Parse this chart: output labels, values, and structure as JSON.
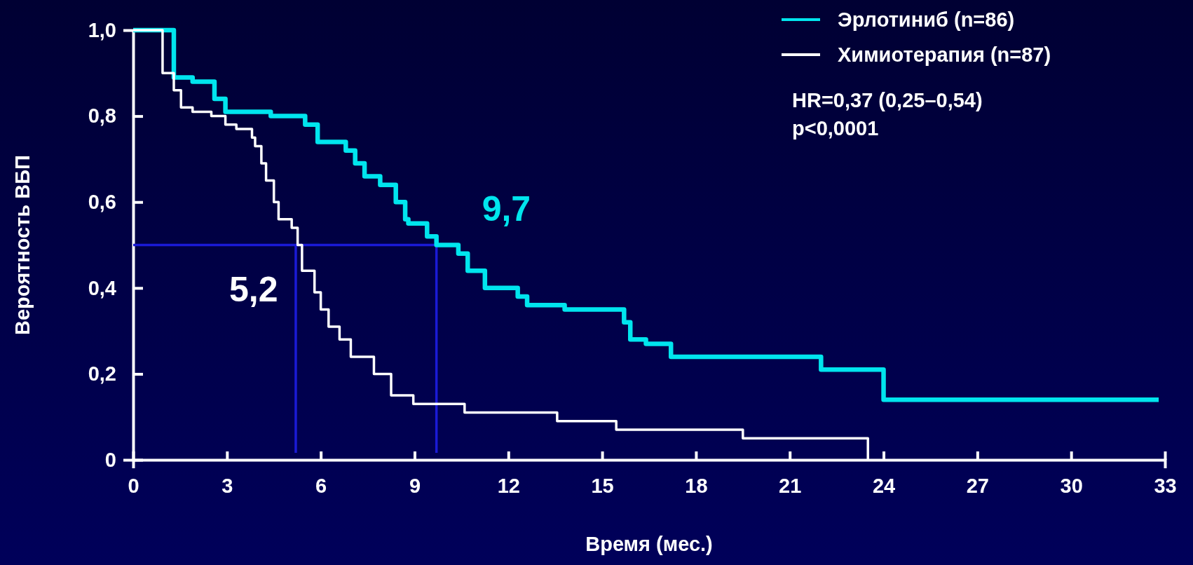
{
  "chart_data": {
    "type": "step",
    "xlabel": "Время (мес.)",
    "ylabel": "Вероятность ВБП",
    "xlim": [
      0,
      33
    ],
    "xticks": [
      0,
      3,
      6,
      9,
      12,
      15,
      18,
      21,
      24,
      27,
      30,
      33
    ],
    "ylim": [
      0,
      1
    ],
    "yticks": [
      {
        "value": 0,
        "label": "0"
      },
      {
        "value": 0.2,
        "label": "0,2"
      },
      {
        "value": 0.4,
        "label": "0,4"
      },
      {
        "value": 0.6,
        "label": "0,6"
      },
      {
        "value": 0.8,
        "label": "0,8"
      },
      {
        "value": 1,
        "label": "1,0"
      }
    ],
    "grid": false,
    "legend": "top right",
    "marker": "none",
    "line_style": "solid",
    "series": [
      {
        "name": "Эрлотиниб (n=86)",
        "color": "#00e5ee",
        "x": [
          0,
          1.3,
          1.9,
          2.6,
          2.95,
          4.4,
          5.3,
          5.5,
          5.9,
          6.8,
          7.1,
          7.4,
          7.9,
          8.4,
          8.7,
          8.8,
          9.4,
          9.7,
          10.4,
          10.7,
          11.25,
          12.3,
          12.6,
          13.8,
          15.7,
          15.9,
          16.4,
          17.2,
          22.0,
          24.0,
          32.8
        ],
        "values": [
          1,
          0.89,
          0.88,
          0.84,
          0.81,
          0.8,
          0.8,
          0.78,
          0.74,
          0.72,
          0.69,
          0.66,
          0.64,
          0.6,
          0.56,
          0.55,
          0.52,
          0.5,
          0.48,
          0.44,
          0.4,
          0.38,
          0.36,
          0.35,
          0.32,
          0.28,
          0.27,
          0.24,
          0.21,
          0.14,
          0.14
        ]
      },
      {
        "name": "Химиотерапия (n=87)",
        "color": "#ffffff",
        "x": [
          0,
          0.94,
          1.3,
          1.53,
          1.9,
          2.5,
          2.95,
          3.3,
          3.8,
          3.9,
          4.1,
          4.25,
          4.5,
          4.65,
          5.07,
          5.26,
          5.4,
          5.8,
          6.0,
          6.25,
          6.6,
          6.96,
          7.7,
          8.25,
          8.96,
          10.6,
          13.56,
          15.45,
          19.5,
          23.5,
          23.5
        ],
        "values": [
          1,
          0.9,
          0.86,
          0.82,
          0.81,
          0.8,
          0.78,
          0.77,
          0.75,
          0.73,
          0.69,
          0.65,
          0.6,
          0.56,
          0.54,
          0.5,
          0.44,
          0.39,
          0.35,
          0.31,
          0.28,
          0.24,
          0.2,
          0.15,
          0.13,
          0.11,
          0.09,
          0.07,
          0.05,
          0.05,
          0
        ]
      }
    ],
    "ref_lines": [
      {
        "axis": "y",
        "value": 0.5,
        "color": "#1a1ad6"
      },
      {
        "axis": "x",
        "value": 5.2,
        "label": "5,2",
        "color": "#1a1ad6"
      },
      {
        "axis": "x",
        "value": 9.7,
        "label": "9,7",
        "color": "#1a1ad6"
      }
    ],
    "annotations": [
      "HR=0,37 (0,25–0,54)",
      "p<0,0001"
    ]
  }
}
